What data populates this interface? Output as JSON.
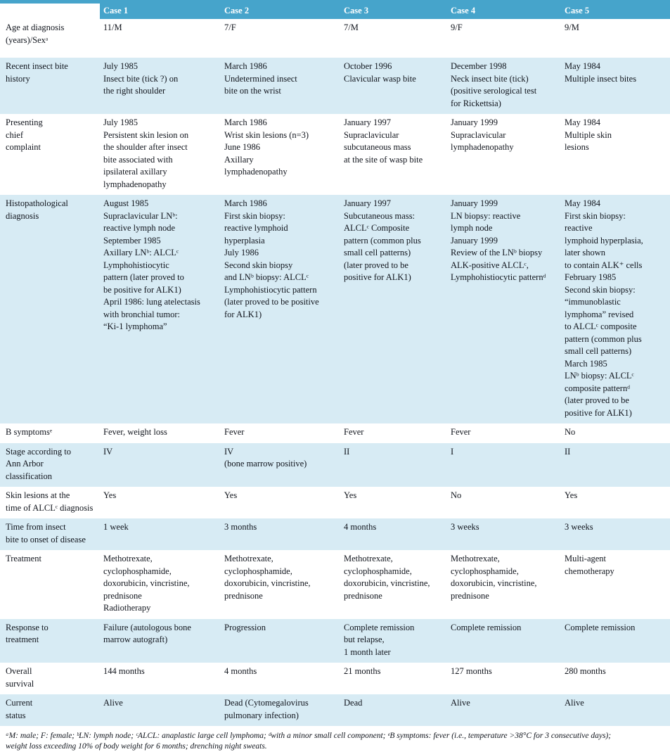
{
  "colors": {
    "header_bg": "#46a4cb",
    "row_alt_bg": "#d7ebf4",
    "header_text": "#ffffff",
    "text": "#10141c"
  },
  "table": {
    "header": {
      "corner": "",
      "columns": [
        "Case 1",
        "Case 2",
        "Case 3",
        "Case 4",
        "Case 5"
      ]
    },
    "rows": [
      {
        "label": "Age at diagnosis\n(years)/Sexᵃ",
        "cells": [
          "11/M",
          "7/F",
          "7/M",
          "9/F",
          "9/M"
        ]
      },
      {
        "label": "Recent insect bite\nhistory",
        "cells": [
          "July 1985\nInsect bite (tick ?) on\nthe right shoulder",
          "March 1986\nUndetermined insect\nbite on the wrist",
          "October 1996\nClavicular wasp bite",
          "December 1998\nNeck insect bite (tick)\n(positive serological test\nfor Rickettsia)",
          "May 1984\nMultiple insect bites"
        ]
      },
      {
        "label": "Presenting\nchief\ncomplaint",
        "cells": [
          "July 1985\nPersistent skin lesion on\nthe shoulder after insect\nbite associated with\nipsilateral axillary\nlymphadenopathy",
          "March 1986\nWrist skin lesions (n=3)\nJune 1986\nAxillary\nlymphadenopathy",
          "January 1997\nSupraclavicular\nsubcutaneous mass\nat the site of wasp bite",
          "January 1999\nSupraclavicular\nlymphadenopathy",
          "May 1984\nMultiple skin\nlesions"
        ]
      },
      {
        "label": "Histopathological\ndiagnosis",
        "cells": [
          "August 1985\nSupraclavicular LNᵇ:\nreactive lymph node\nSeptember 1985\nAxillary LNᵇ: ALCLᶜ\nLymphohistiocytic\npattern (later proved to\nbe positive for ALK1)\nApril 1986: lung atelectasis\nwith bronchial tumor:\n“Ki-1 lymphoma”",
          "March 1986\nFirst skin biopsy:\nreactive lymphoid\nhyperplasia\nJuly 1986\nSecond skin biopsy\nand LNᵇ biopsy: ALCLᶜ\nLymphohistiocytic pattern\n(later proved to be positive\nfor ALK1)",
          "January 1997\nSubcutaneous mass:\nALCLᶜ Composite\npattern (common plus\nsmall cell patterns)\n(later proved to be\npositive for ALK1)",
          "January 1999\nLN biopsy: reactive\nlymph node\nJanuary 1999\nReview of the LNᵇ biopsy\nALK-positive ALCLᶜ,\nLymphohistiocytic patternᵈ",
          "May 1984\nFirst skin biopsy:\nreactive\nlymphoid hyperplasia,\nlater shown\nto contain ALK⁺ cells\nFebruary 1985\nSecond skin biopsy:\n“immunoblastic\nlymphoma” revised\nto ALCLᶜ composite\npattern (common plus\nsmall cell patterns)\nMarch 1985\nLNᵇ biopsy: ALCLᶜ\ncomposite patternᵈ\n(later proved to be\npositive for ALK1)"
        ]
      },
      {
        "label": "B symptomsᵉ",
        "cells": [
          "Fever, weight loss",
          "Fever",
          "Fever",
          "Fever",
          "No"
        ]
      },
      {
        "label": "Stage according to\nAnn Arbor\nclassification",
        "cells": [
          "IV",
          "IV\n(bone marrow positive)",
          "II",
          "I",
          "II"
        ]
      },
      {
        "label": "Skin lesions at the\ntime of ALCLᶜ diagnosis",
        "cells": [
          "Yes",
          "Yes",
          "Yes",
          "No",
          "Yes"
        ]
      },
      {
        "label": "Time from insect\nbite to onset of disease",
        "cells": [
          "1 week",
          "3 months",
          "4 months",
          "3 weeks",
          "3 weeks"
        ]
      },
      {
        "label": "Treatment",
        "cells": [
          "Methotrexate,\ncyclophosphamide,\ndoxorubicin, vincristine,\nprednisone\nRadiotherapy",
          "Methotrexate,\ncyclophosphamide,\ndoxorubicin, vincristine,\nprednisone",
          "Methotrexate,\ncyclophosphamide,\ndoxorubicin, vincristine,\nprednisone",
          "Methotrexate,\ncyclophosphamide,\ndoxorubicin, vincristine,\nprednisone",
          "Multi-agent\nchemotherapy"
        ]
      },
      {
        "label": "Response to\ntreatment",
        "cells": [
          "Failure (autologous bone\nmarrow autograft)",
          "Progression",
          "Complete remission\nbut relapse,\n1 month later",
          "Complete remission",
          "Complete remission"
        ]
      },
      {
        "label": "Overall\nsurvival",
        "cells": [
          "144 months",
          "4 months",
          "21 months",
          "127 months",
          "280 months"
        ]
      },
      {
        "label": "Current\nstatus",
        "cells": [
          "Alive",
          "Dead (Cytomegalovirus\npulmonary infection)",
          "Dead",
          "Alive",
          "Alive"
        ]
      }
    ],
    "footnote": "ᵃM: male; F: female; ᵇLN: lymph node; ᶜALCL: anaplastic large cell lymphoma; ᵈwith a minor small cell component; ᵉB symptoms: fever (i.e., temperature >38°C for 3 consecutive days);\nweight loss exceeding 10% of body weight for 6 months; drenching night sweats."
  }
}
